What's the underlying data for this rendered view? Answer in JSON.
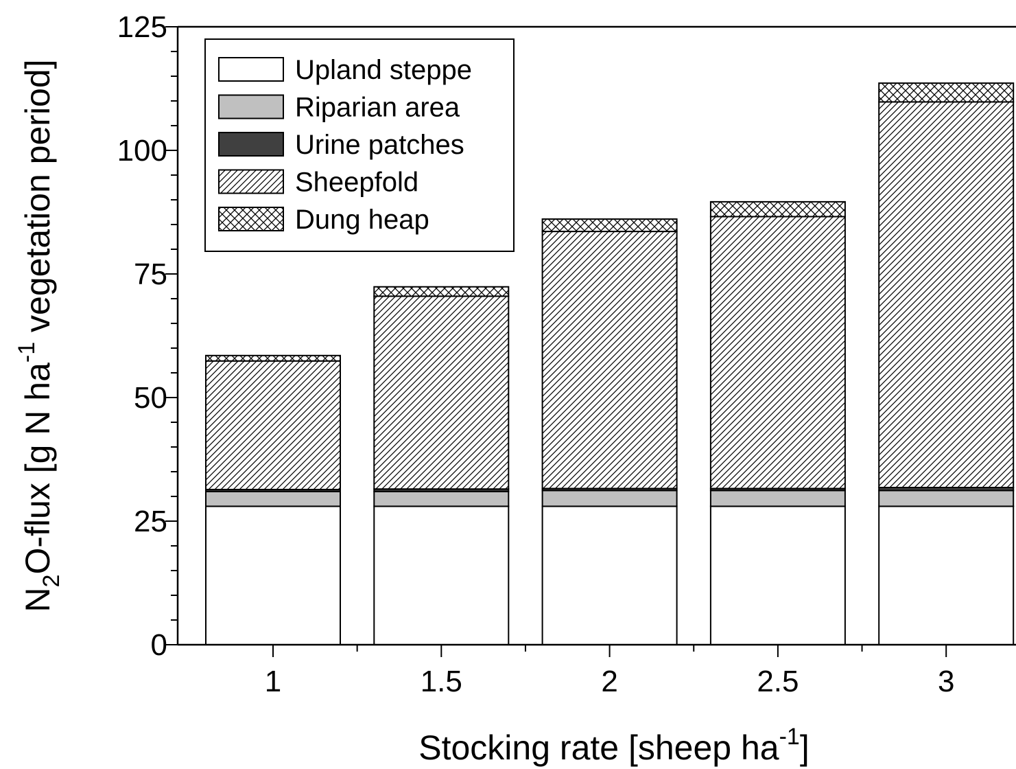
{
  "chart_data": {
    "type": "bar",
    "stacked": true,
    "categories": [
      "1",
      "1.5",
      "2",
      "2.5",
      "3"
    ],
    "series": [
      {
        "name": "Upland steppe",
        "values": [
          28.0,
          28.0,
          28.0,
          28.0,
          28.0
        ],
        "fill": "#ffffff",
        "pattern": "solid"
      },
      {
        "name": "Riparian area",
        "values": [
          3.0,
          3.0,
          3.2,
          3.2,
          3.2
        ],
        "fill": "#c0c0c0",
        "pattern": "solid"
      },
      {
        "name": "Urine patches",
        "values": [
          0.4,
          0.5,
          0.4,
          0.4,
          0.6
        ],
        "fill": "#404040",
        "pattern": "solid"
      },
      {
        "name": "Sheepfold",
        "values": [
          26.0,
          39.0,
          52.0,
          55.0,
          78.0
        ],
        "fill": "#ffffff",
        "pattern": "diagonal-hatch"
      },
      {
        "name": "Dung heap",
        "values": [
          1.1,
          1.9,
          2.5,
          3.0,
          3.8
        ],
        "fill": "#ffffff",
        "pattern": "cross-hatch"
      }
    ],
    "xlabel": "Stocking rate [sheep ha-1]",
    "ylabel": "N2O-flux [g N ha-1 vegetation period]",
    "ylim": [
      0,
      125
    ],
    "yticks": [
      "0",
      "25",
      "50",
      "75",
      "100",
      "125"
    ],
    "legend_position": "top-left",
    "grid": false
  }
}
